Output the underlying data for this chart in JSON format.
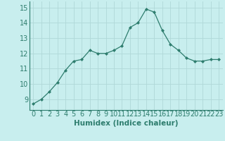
{
  "x": [
    0,
    1,
    2,
    3,
    4,
    5,
    6,
    7,
    8,
    9,
    10,
    11,
    12,
    13,
    14,
    15,
    16,
    17,
    18,
    19,
    20,
    21,
    22,
    23
  ],
  "y": [
    8.7,
    9.0,
    9.5,
    10.1,
    10.9,
    11.5,
    11.6,
    12.2,
    12.0,
    12.0,
    12.2,
    12.5,
    13.7,
    14.0,
    14.9,
    14.7,
    13.5,
    12.6,
    12.2,
    11.7,
    11.5,
    11.5,
    11.6,
    11.6
  ],
  "line_color": "#2e7d6e",
  "marker": "D",
  "marker_size": 2.0,
  "bg_color": "#c8eeee",
  "grid_color": "#b0d8d8",
  "xlabel": "Humidex (Indice chaleur)",
  "xlabel_fontsize": 7.5,
  "tick_fontsize": 7,
  "xlim": [
    -0.5,
    23.5
  ],
  "ylim": [
    8.3,
    15.4
  ],
  "yticks": [
    9,
    10,
    11,
    12,
    13,
    14,
    15
  ],
  "xticks": [
    0,
    1,
    2,
    3,
    4,
    5,
    6,
    7,
    8,
    9,
    10,
    11,
    12,
    13,
    14,
    15,
    16,
    17,
    18,
    19,
    20,
    21,
    22,
    23
  ]
}
